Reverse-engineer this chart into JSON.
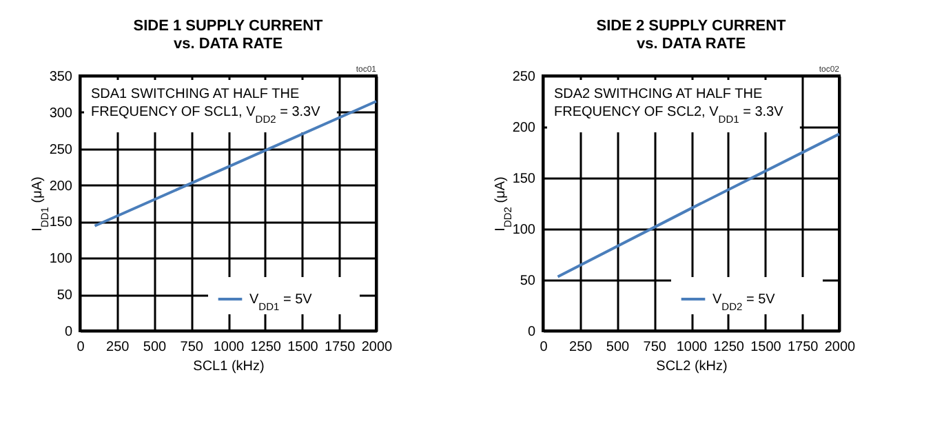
{
  "chart_data": [
    {
      "type": "line",
      "title": "SIDE 1 SUPPLY CURRENT\nvs. DATA RATE",
      "xlabel": "SCL1 (kHz)",
      "ylabel": "I$_{DD1}$ (μA)",
      "annotations": [
        "SDA1 SWITCHING AT HALF THE\nFREQUENCY OF SCL1, V$_{DD2}$ = 3.3V",
        "toc01"
      ],
      "x": [
        100,
        1000,
        2000
      ],
      "series": [
        {
          "name": "V$_{DD1}$ = 5V",
          "color": "#4a7ebb",
          "values": [
            144,
            225,
            315
          ]
        }
      ],
      "xlim": [
        0,
        2000
      ],
      "xticks": [
        0,
        250,
        500,
        750,
        1000,
        1250,
        1500,
        1750,
        2000
      ],
      "ylim": [
        0,
        350
      ],
      "yticks": [
        0,
        50,
        100,
        150,
        200,
        250,
        300,
        350
      ],
      "grid": true,
      "legend": "bottom right",
      "line_style": "solid",
      "marker": "none"
    },
    {
      "type": "line",
      "title": "SIDE 2 SUPPLY CURRENT\nvs. DATA RATE",
      "xlabel": "SCL2 (kHz)",
      "ylabel": "I$_{DD2}$ (μA)",
      "annotations": [
        "SDA2 SWITHCING AT HALF THE\nFREQUENCY OF SCL2, V$_{DD1}$ = 3.3V",
        "toc02"
      ],
      "x": [
        100,
        1000,
        2000
      ],
      "series": [
        {
          "name": "V$_{DD2}$ = 5V",
          "color": "#4a7ebb",
          "values": [
            53,
            120,
            193
          ]
        }
      ],
      "xlim": [
        0,
        2000
      ],
      "xticks": [
        0,
        250,
        500,
        750,
        1000,
        1250,
        1500,
        1750,
        2000
      ],
      "ylim": [
        0,
        250
      ],
      "yticks": [
        0,
        50,
        100,
        150,
        200,
        250
      ],
      "grid": true,
      "legend": "bottom right",
      "line_style": "solid",
      "marker": "none"
    }
  ]
}
